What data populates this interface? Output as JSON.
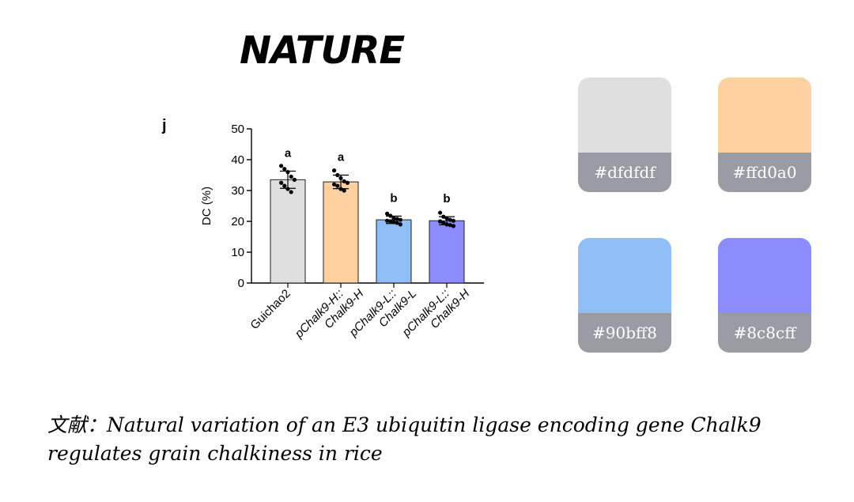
{
  "header": {
    "journal": "NATURE",
    "panel_letter": "j"
  },
  "chart_data": {
    "type": "bar",
    "ylabel": "DC (%)",
    "ylim": [
      0,
      50
    ],
    "yticks": [
      0,
      10,
      20,
      30,
      40,
      50
    ],
    "categories": [
      "Guichao2",
      "pChalk9-H::Chalk9-H",
      "pChalk9-L::Chalk9-L",
      "pChalk9-L::Chalk9-H"
    ],
    "tick_labels": [
      [
        "Guichao2"
      ],
      [
        "pChalk9-H::",
        "Chalk9-H"
      ],
      [
        "pChalk9-L::",
        "Chalk9-L"
      ],
      [
        "pChalk9-L::",
        "Chalk9-H"
      ]
    ],
    "values": [
      33.5,
      32.8,
      20.5,
      20.2
    ],
    "errors": [
      2.8,
      2.2,
      1.2,
      1.3
    ],
    "significance": [
      "a",
      "a",
      "b",
      "b"
    ],
    "colors": [
      "#dfdfdf",
      "#ffd0a0",
      "#90bff8",
      "#8c8cff"
    ],
    "points": [
      [
        38.0,
        37.0,
        36.0,
        34.5,
        33.5,
        32.5,
        31.5,
        30.5,
        29.5
      ],
      [
        36.5,
        35.0,
        34.0,
        33.0,
        32.5,
        32.0,
        31.5,
        30.5,
        30.0
      ],
      [
        22.5,
        21.8,
        21.0,
        20.8,
        20.5,
        20.2,
        20.0,
        19.8,
        19.5,
        19.0
      ],
      [
        22.8,
        21.5,
        21.0,
        20.5,
        20.2,
        20.0,
        19.5,
        19.0,
        18.8,
        18.5
      ]
    ]
  },
  "palette": [
    {
      "hex": "#dfdfdf",
      "label": "#dfdfdf"
    },
    {
      "hex": "#ffd0a0",
      "label": "#ffd0a0"
    },
    {
      "hex": "#90bff8",
      "label": "#90bff8"
    },
    {
      "hex": "#8c8cff",
      "label": "#8c8cff"
    }
  ],
  "citation": {
    "text": "文献：Natural variation of an E3 ubiquitin ligase encoding gene Chalk9 regulates grain chalkiness in rice"
  }
}
